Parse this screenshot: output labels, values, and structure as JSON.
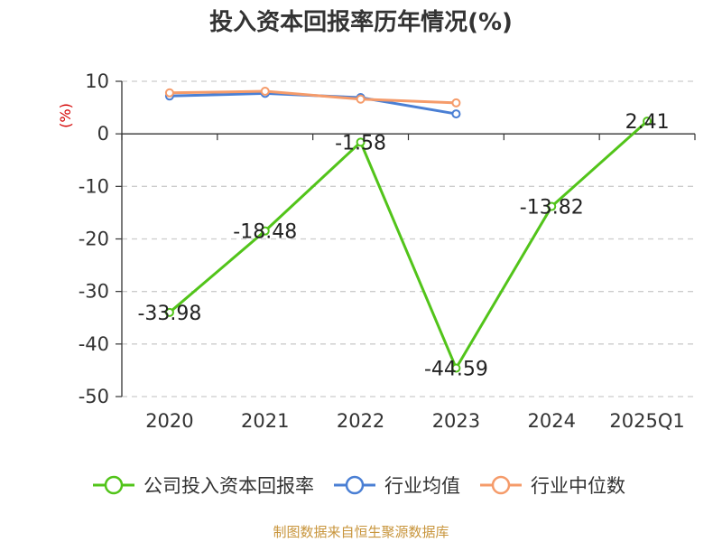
{
  "chart_data": {
    "type": "line",
    "title": "投入资本回报率历年情况(%)",
    "ylabel": "(%)",
    "xlabel": "",
    "categories": [
      "2020",
      "2021",
      "2022",
      "2023",
      "2024",
      "2025Q1"
    ],
    "ylim": [
      -50,
      10
    ],
    "yticks": [
      10,
      0,
      -10,
      -20,
      -30,
      -40,
      -50
    ],
    "grid": true,
    "legend_position": "bottom",
    "series": [
      {
        "name": "公司投入资本回报率",
        "color": "#52c41a",
        "values": [
          -33.98,
          -18.48,
          -1.58,
          -44.59,
          -13.82,
          2.41
        ],
        "data_labels": [
          "-33.98",
          "-18.48",
          "-1.58",
          "-44.59",
          "-13.82",
          "2.41"
        ]
      },
      {
        "name": "行业均值",
        "color": "#4a7fd4",
        "values": [
          7.2,
          7.7,
          6.9,
          3.8,
          null,
          null
        ]
      },
      {
        "name": "行业中位数",
        "color": "#f59b6a",
        "values": [
          7.8,
          8.1,
          6.6,
          5.9,
          null,
          null
        ]
      }
    ]
  },
  "source": "制图数据来自恒生聚源数据库"
}
